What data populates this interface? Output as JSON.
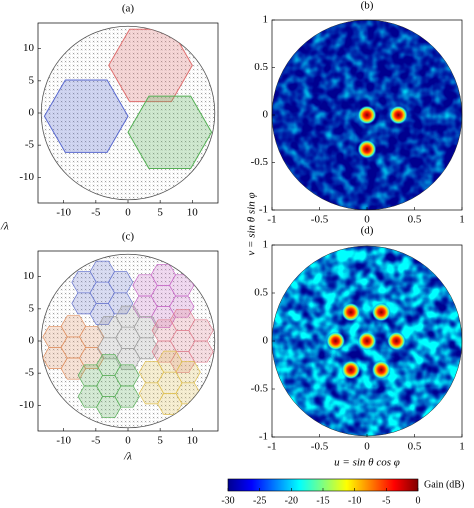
{
  "chart_data": [
    {
      "type": "array",
      "title": "(a)",
      "ylabel": "/λ",
      "xlim": [
        -14,
        14
      ],
      "ylim": [
        -14,
        14
      ],
      "xticks": [
        -10,
        -5,
        0,
        5,
        10
      ],
      "yticks": [
        -10,
        -5,
        0,
        5,
        10
      ],
      "array_radius": 13.5,
      "hex_radius": 6.5,
      "x": [
        3.5,
        -6.5,
        6.5
      ],
      "y": [
        7.4,
        -0.5,
        -3
      ],
      "colors": [
        "#e07070",
        "#5a6ad0",
        "#55b055"
      ]
    },
    {
      "type": "pattern",
      "title": "(b)",
      "ylabel": "v = sin θ sin φ",
      "xlim": [
        -1,
        1
      ],
      "ylim": [
        -1,
        1
      ],
      "xticks": [
        -1,
        -0.5,
        0,
        0.5,
        1
      ],
      "yticks": [
        -1,
        -0.5,
        0,
        0.5,
        1
      ],
      "x": [
        0,
        0.33,
        0
      ],
      "y": [
        0,
        0,
        -0.36
      ]
    },
    {
      "type": "array",
      "title": "(c)",
      "xlabel": "/λ",
      "xlim": [
        -14,
        14
      ],
      "ylim": [
        -14,
        14
      ],
      "xticks": [
        -10,
        -5,
        0,
        5,
        10
      ],
      "yticks": [
        -10,
        -5,
        0,
        5,
        10
      ],
      "array_radius": 13.5,
      "hex_radius": 1.9,
      "x": [
        -4,
        5.5,
        -8.5,
        0,
        8.5,
        -3,
        6.5
      ],
      "y": [
        7.5,
        7,
        -1,
        0.5,
        0,
        -7,
        -6.5
      ],
      "colors": [
        "#6a78d0",
        "#c86ac8",
        "#e09060",
        "#a0a0a0",
        "#e08090",
        "#5ab05a",
        "#e0c050"
      ]
    },
    {
      "type": "pattern",
      "xlabel": "u = sin θ cos φ",
      "title": "(d)",
      "xlim": [
        -1,
        1
      ],
      "ylim": [
        -1,
        1
      ],
      "xticks": [
        -1,
        -0.5,
        0,
        0.5,
        1
      ],
      "yticks": [
        -1,
        -0.5,
        0,
        0.5,
        1
      ],
      "x": [
        -0.17,
        0.15,
        -0.33,
        0,
        0.31,
        -0.17,
        0.15
      ],
      "y": [
        0.3,
        0.3,
        0,
        0,
        0,
        -0.3,
        -0.3
      ]
    },
    {
      "type": "colorbar",
      "title": "Gain (dB)",
      "xlim": [
        -30,
        0
      ],
      "xticks": [
        -30,
        -25,
        -20,
        -15,
        -10,
        -5,
        0
      ]
    }
  ]
}
